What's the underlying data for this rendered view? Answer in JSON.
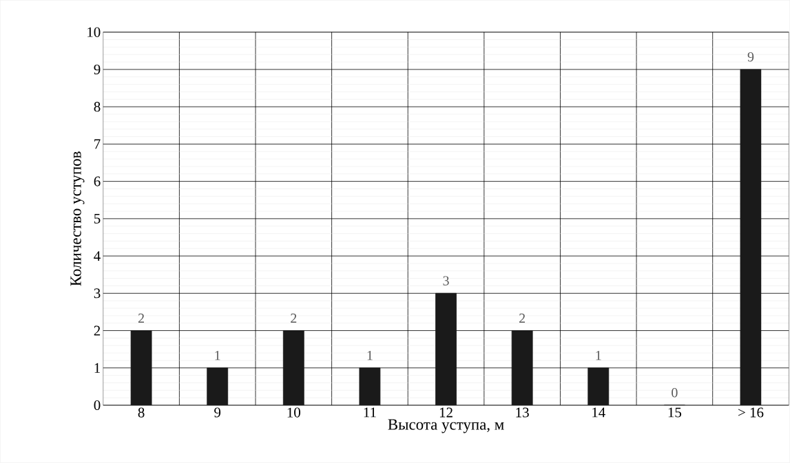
{
  "chart_data": {
    "type": "bar",
    "xlabel": "Высота уступа, м",
    "ylabel": "Количество уступов",
    "categories": [
      "8",
      "9",
      "10",
      "11",
      "12",
      "13",
      "14",
      "15",
      "> 16"
    ],
    "values": [
      2,
      1,
      2,
      1,
      3,
      2,
      1,
      0,
      9
    ],
    "color": "#1a1a1a",
    "ylim": [
      0,
      10
    ],
    "yticks": [
      0,
      1,
      2,
      3,
      4,
      5,
      6,
      7,
      8,
      9,
      10
    ],
    "grid": true,
    "data_labels": true
  }
}
